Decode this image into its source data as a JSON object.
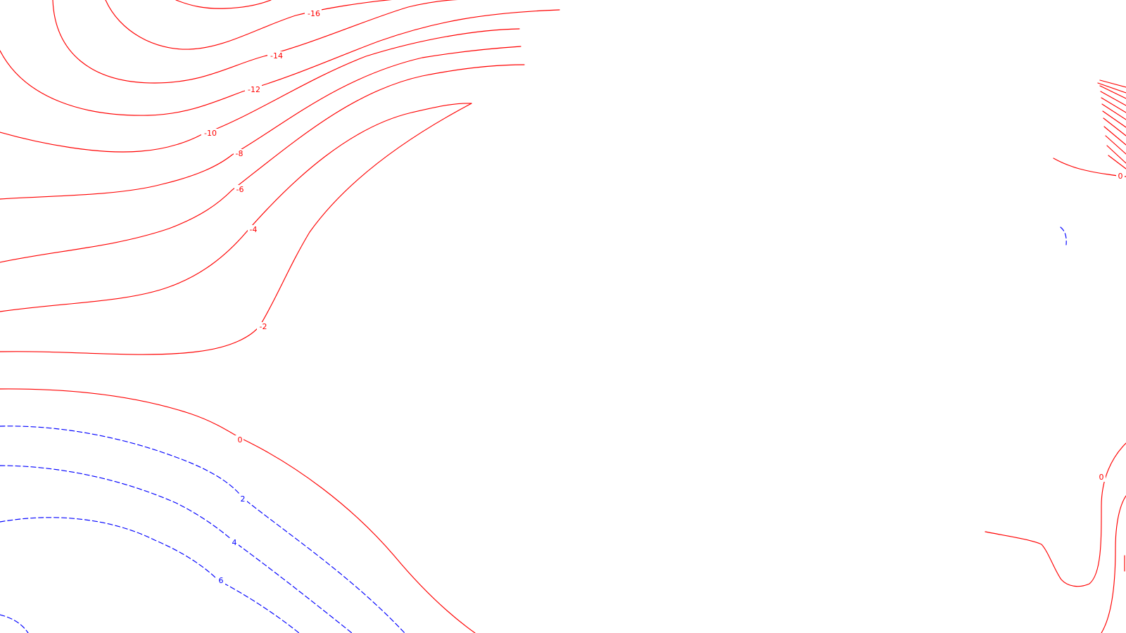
{
  "map": {
    "colors": {
      "background": "#ffffff",
      "red_contour": "#ff0000",
      "blue_contour": "#0000ff"
    },
    "contour_labels": {
      "neg16": "-16",
      "neg14": "-14",
      "neg12": "-12",
      "neg10": "-10",
      "neg8": "-8",
      "neg6": "-6",
      "neg4": "-4",
      "neg2": "-2",
      "zero_left": "0",
      "pos2": "2",
      "pos4": "4",
      "pos6": "6",
      "zero_upper_right": "0",
      "zero_lower_right": "0"
    }
  }
}
